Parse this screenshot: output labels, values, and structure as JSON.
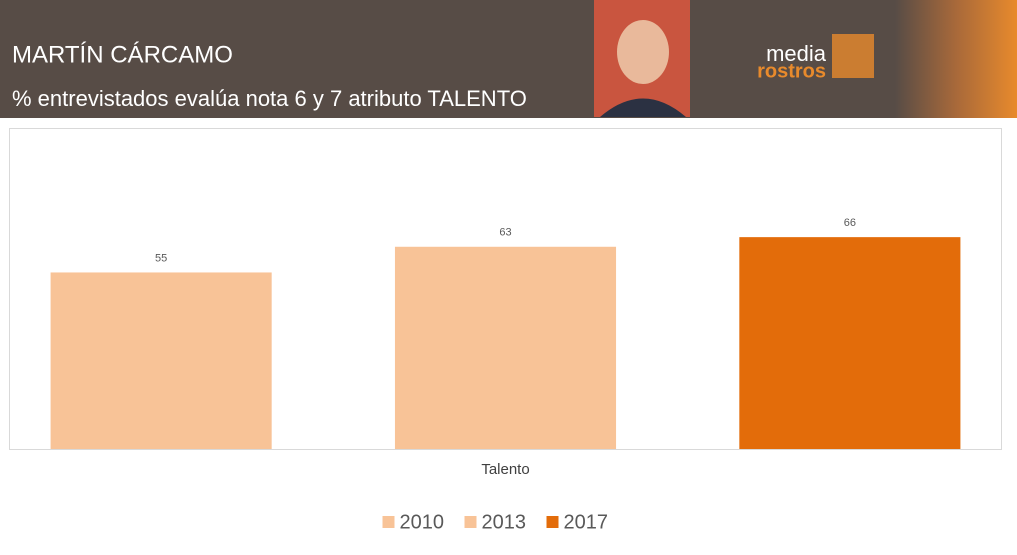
{
  "header": {
    "title": "MARTÍN CÁRCAMO",
    "subtitle": "% entrevistados evalúa nota 6 y 7 atributo TALENTO",
    "logo_top": "media",
    "logo_bottom": "rostros"
  },
  "chart_data": {
    "type": "bar",
    "categories": [
      "Talento"
    ],
    "series": [
      {
        "name": "2010",
        "color": "#f8c397",
        "values": [
          55
        ]
      },
      {
        "name": "2013",
        "color": "#f8c397",
        "values": [
          63
        ]
      },
      {
        "name": "2017",
        "color": "#e36c0a",
        "values": [
          66
        ]
      }
    ],
    "ylim": [
      0,
      100
    ],
    "grid": false
  }
}
